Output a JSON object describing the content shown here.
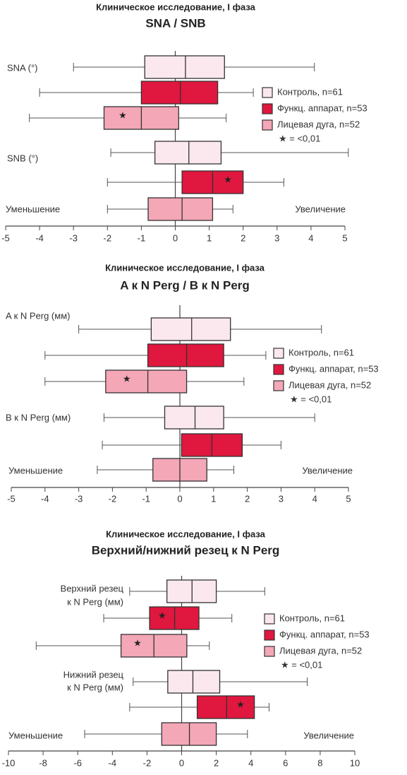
{
  "chart_data": [
    {
      "type": "box",
      "title": "Клиническое исследование, I фаза",
      "subtitle": "SNA / SNB",
      "xlim": [
        -5,
        5
      ],
      "xticks": [
        -5,
        -4,
        -3,
        -2,
        -1,
        0,
        1,
        2,
        3,
        4,
        5
      ],
      "decrease_label": "Уменьшение",
      "increase_label": "Увеличение",
      "series": [
        {
          "name": "Контроль, n=61",
          "color": "#fbe8ef"
        },
        {
          "name": "Функц. аппарат, n=53",
          "color": "#e0173e"
        },
        {
          "name": "Лицевая дуга, n=52",
          "color": "#f4a7b7"
        }
      ],
      "legend_note": "★ = <0,01",
      "groups": [
        {
          "label": [
            "SNA (°)"
          ],
          "stats": [
            [
              -3.0,
              -0.9,
              0.3,
              1.45,
              4.1
            ],
            [
              -4.0,
              -1.0,
              0.15,
              1.25,
              2.3
            ],
            [
              -4.3,
              -2.1,
              -1.0,
              0.1,
              1.5
            ]
          ],
          "flags": [
            null,
            null,
            "★"
          ]
        },
        {
          "label": [
            "SNB (°)"
          ],
          "stats": [
            [
              -1.9,
              -0.6,
              0.4,
              1.35,
              5.1
            ],
            [
              -2.0,
              0.2,
              1.1,
              2.0,
              3.2
            ],
            [
              -2.0,
              -0.8,
              0.2,
              1.1,
              1.7
            ]
          ],
          "flags": [
            null,
            "★",
            null
          ]
        }
      ]
    },
    {
      "type": "box",
      "title": "Клиническое исследование, I фаза",
      "subtitle": "A к N Perg / B к N Perg",
      "xlim": [
        -5,
        5
      ],
      "xticks": [
        -5,
        -4,
        -3,
        -2,
        -1,
        0,
        1,
        2,
        3,
        4,
        5
      ],
      "decrease_label": "Уменьшение",
      "increase_label": "Увеличение",
      "series": [
        {
          "name": "Контроль, n=61",
          "color": "#fbe8ef"
        },
        {
          "name": "Функц. аппарат, n=53",
          "color": "#e0173e"
        },
        {
          "name": "Лицевая дуга, n=52",
          "color": "#f4a7b7"
        }
      ],
      "legend_note": "★ = <0,01",
      "groups": [
        {
          "label": [
            "A к N Perg (мм)"
          ],
          "stats": [
            [
              -3.0,
              -0.85,
              0.35,
              1.5,
              4.2
            ],
            [
              -4.0,
              -0.95,
              0.2,
              1.3,
              2.55
            ],
            [
              -4.0,
              -2.2,
              -0.95,
              0.2,
              1.9
            ]
          ],
          "flags": [
            null,
            null,
            "★"
          ]
        },
        {
          "label": [
            "B к N Perg (мм)"
          ],
          "stats": [
            [
              -2.25,
              -0.45,
              0.45,
              1.3,
              4.0
            ],
            [
              -2.3,
              0.05,
              0.95,
              1.85,
              3.0
            ],
            [
              -2.45,
              -0.8,
              0.0,
              0.8,
              1.6
            ]
          ],
          "flags": [
            null,
            null,
            null
          ]
        }
      ]
    },
    {
      "type": "box",
      "title": "Клиническое исследование, I фаза",
      "subtitle": "Верхний/нижний резец к N Perg",
      "xlim": [
        -10,
        10
      ],
      "xticks": [
        -10,
        -8,
        -6,
        -4,
        -2,
        0,
        2,
        4,
        6,
        8,
        10
      ],
      "decrease_label": "Уменьшение",
      "increase_label": "Увеличение",
      "series": [
        {
          "name": "Контроль, n=61",
          "color": "#fbe8ef"
        },
        {
          "name": "Функц. аппарат, n=53",
          "color": "#e0173e"
        },
        {
          "name": "Лицевая дуга, n=52",
          "color": "#f4a7b7"
        }
      ],
      "legend_note": "★ = <0,01",
      "groups": [
        {
          "label": [
            "Верхний резец",
            "к N Perg (мм)"
          ],
          "stats": [
            [
              -3.0,
              -0.85,
              0.6,
              2.0,
              4.8
            ],
            [
              -4.5,
              -1.85,
              -0.4,
              1.0,
              2.9
            ],
            [
              -8.4,
              -3.5,
              -1.6,
              0.3,
              1.6
            ]
          ],
          "flags": [
            null,
            "★",
            "★"
          ]
        },
        {
          "label": [
            "Нижний резец",
            "к N Perg (мм)"
          ],
          "stats": [
            [
              -2.8,
              -0.8,
              0.65,
              2.2,
              7.25
            ],
            [
              -3.0,
              0.9,
              2.6,
              4.2,
              5.05
            ],
            [
              -5.6,
              -1.15,
              0.45,
              2.0,
              3.8
            ]
          ],
          "flags": [
            null,
            "★",
            null
          ]
        }
      ]
    }
  ]
}
